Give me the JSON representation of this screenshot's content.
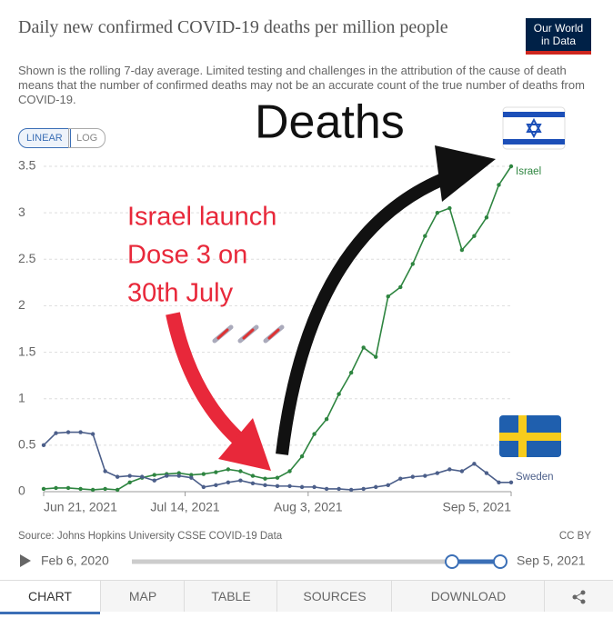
{
  "chart_data": {
    "type": "line",
    "title": "Daily new confirmed COVID-19 deaths per million people",
    "subtitle": "Shown is the rolling 7-day average. Limited testing and challenges in the attribution of the cause of death means that the number of confirmed deaths may not be an accurate count of the true number of deaths from COVID-19.",
    "x": [
      "Jun 21, 2021",
      "Jun 23, 2021",
      "Jun 25, 2021",
      "Jun 27, 2021",
      "Jun 29, 2021",
      "Jul 1, 2021",
      "Jul 3, 2021",
      "Jul 5, 2021",
      "Jul 7, 2021",
      "Jul 9, 2021",
      "Jul 11, 2021",
      "Jul 13, 2021",
      "Jul 15, 2021",
      "Jul 17, 2021",
      "Jul 19, 2021",
      "Jul 21, 2021",
      "Jul 23, 2021",
      "Jul 25, 2021",
      "Jul 27, 2021",
      "Jul 29, 2021",
      "Jul 31, 2021",
      "Aug 2, 2021",
      "Aug 4, 2021",
      "Aug 6, 2021",
      "Aug 8, 2021",
      "Aug 10, 2021",
      "Aug 12, 2021",
      "Aug 14, 2021",
      "Aug 16, 2021",
      "Aug 18, 2021",
      "Aug 20, 2021",
      "Aug 22, 2021",
      "Aug 24, 2021",
      "Aug 26, 2021",
      "Aug 28, 2021",
      "Aug 30, 2021",
      "Sep 1, 2021",
      "Sep 3, 2021",
      "Sep 5, 2021"
    ],
    "series": [
      {
        "name": "Israel",
        "color": "#2e8540",
        "values": [
          0.03,
          0.04,
          0.04,
          0.03,
          0.02,
          0.03,
          0.02,
          0.1,
          0.15,
          0.18,
          0.19,
          0.2,
          0.18,
          0.19,
          0.21,
          0.24,
          0.22,
          0.17,
          0.14,
          0.15,
          0.22,
          0.38,
          0.62,
          0.78,
          1.05,
          1.28,
          1.55,
          1.45,
          2.1,
          2.2,
          2.45,
          2.75,
          3.0,
          3.05,
          2.6,
          2.75,
          2.95,
          3.3,
          3.5
        ]
      },
      {
        "name": "Sweden",
        "color": "#4c5f8a",
        "values": [
          0.5,
          0.63,
          0.64,
          0.64,
          0.62,
          0.22,
          0.16,
          0.17,
          0.16,
          0.12,
          0.17,
          0.17,
          0.15,
          0.05,
          0.07,
          0.1,
          0.12,
          0.09,
          0.07,
          0.06,
          0.06,
          0.05,
          0.05,
          0.03,
          0.03,
          0.02,
          0.03,
          0.05,
          0.07,
          0.14,
          0.16,
          0.17,
          0.2,
          0.24,
          0.22,
          0.3,
          0.2,
          0.1,
          0.1
        ]
      }
    ],
    "xlim": [
      "Jun 21, 2021",
      "Sep 5, 2021"
    ],
    "xticks": [
      "Jun 21, 2021",
      "Jul 14, 2021",
      "Aug 3, 2021",
      "Sep 5, 2021"
    ],
    "ylim": [
      0,
      3.5
    ],
    "yticks": [
      0,
      0.5,
      1,
      1.5,
      2,
      2.5,
      3,
      3.5
    ],
    "grid": true,
    "annotations": [
      "Deaths",
      "Israel launch",
      "Dose 3 on",
      "30th July"
    ]
  },
  "logo": [
    "Our World",
    "in Data"
  ],
  "scale_buttons": [
    "LINEAR",
    "LOG"
  ],
  "source": "Source: Johns Hopkins University CSSE COVID-19 Data",
  "license": "CC BY",
  "timeline": {
    "start": "Feb 6, 2020",
    "end": "Sep 5, 2021"
  },
  "tabs": [
    "CHART",
    "MAP",
    "TABLE",
    "SOURCES",
    "DOWNLOAD"
  ]
}
